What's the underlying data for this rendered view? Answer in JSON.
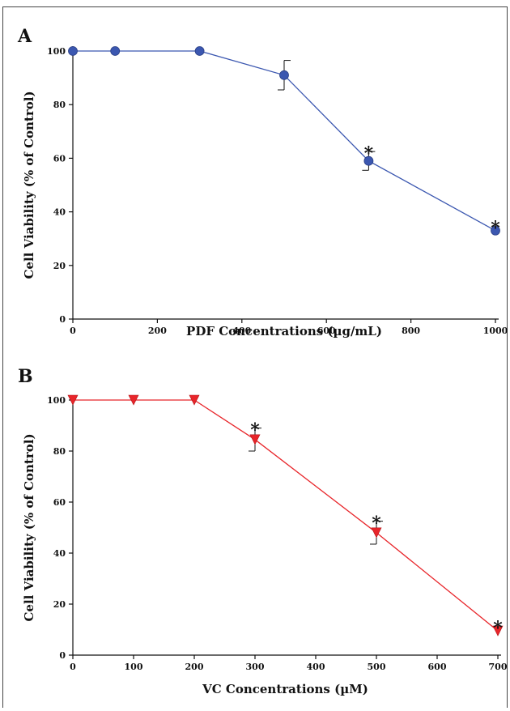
{
  "chart_data": [
    {
      "type": "line",
      "panel_label": "A",
      "xlabel": "PDF Concentrations (µg/mL)",
      "ylabel": "Cell Viability (% of Control)",
      "xlim": [
        0,
        1000
      ],
      "ylim": [
        0,
        100
      ],
      "xticks": [
        0,
        200,
        400,
        600,
        800,
        1000
      ],
      "yticks": [
        0,
        20,
        40,
        60,
        80,
        100
      ],
      "marker": "circle",
      "color": "#3b57b0",
      "series": [
        {
          "x": [
            0,
            100,
            300,
            500,
            700,
            1000
          ],
          "y": [
            100,
            100,
            100,
            91,
            59,
            33
          ],
          "error": [
            0,
            0,
            0,
            5.5,
            3.5,
            0
          ],
          "significant": [
            false,
            false,
            false,
            false,
            true,
            true
          ]
        }
      ],
      "significance_marker": "*"
    },
    {
      "type": "line",
      "panel_label": "B",
      "xlabel": "VC Concentrations (µM)",
      "ylabel": "Cell Viability (% of Control)",
      "xlim": [
        0,
        700
      ],
      "ylim": [
        0,
        100
      ],
      "xticks": [
        0,
        100,
        200,
        300,
        400,
        500,
        600,
        700
      ],
      "yticks": [
        0,
        20,
        40,
        60,
        80,
        100
      ],
      "marker": "triangle-down",
      "color": "#e8252a",
      "series": [
        {
          "x": [
            0,
            100,
            200,
            300,
            500,
            700
          ],
          "y": [
            100,
            100,
            100,
            84.5,
            48,
            9.5
          ],
          "error": [
            0,
            0,
            0,
            4.5,
            4.5,
            0
          ],
          "significant": [
            false,
            false,
            false,
            true,
            true,
            true
          ]
        }
      ],
      "significance_marker": "*"
    }
  ]
}
